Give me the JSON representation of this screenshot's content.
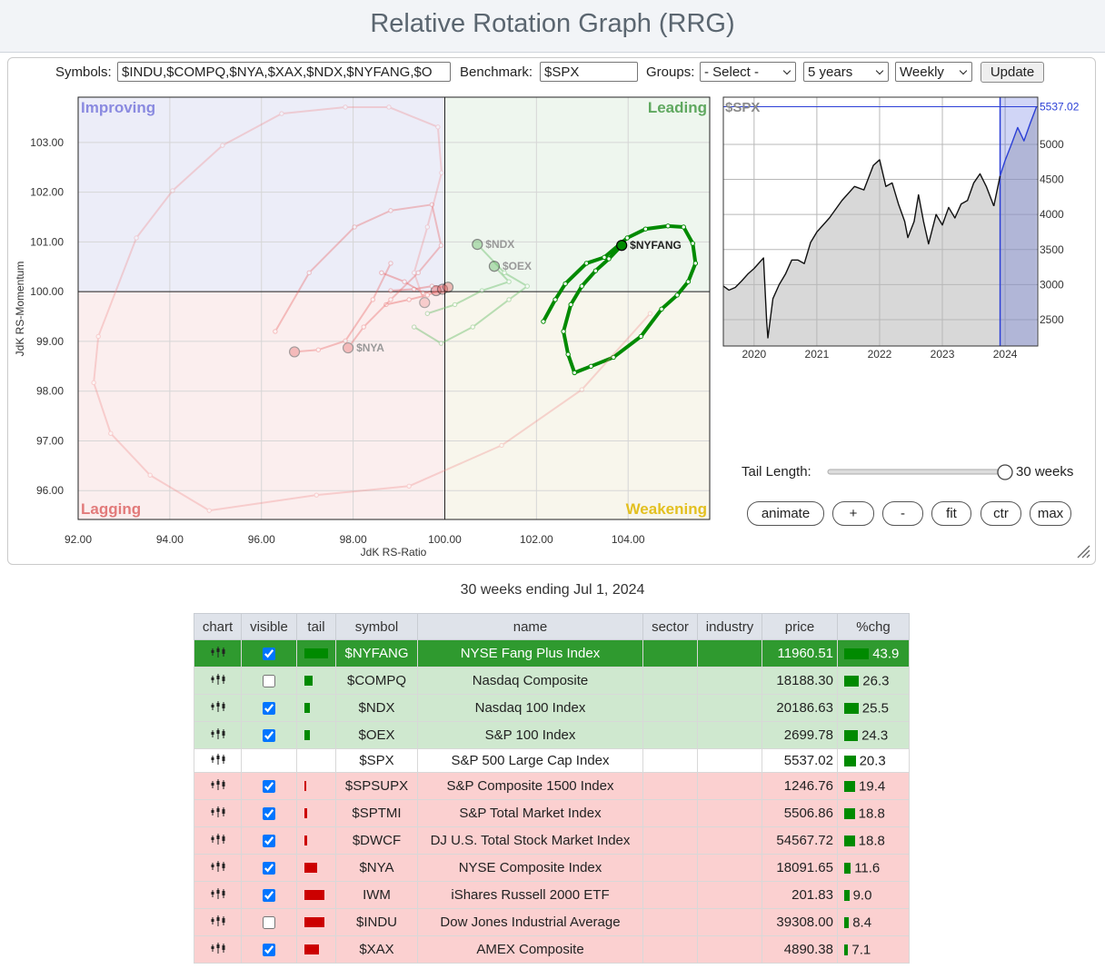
{
  "header": {
    "title": "Relative Rotation Graph (RRG)"
  },
  "controls": {
    "symbols": {
      "label": "Symbols:",
      "value": "$INDU,$COMPQ,$NYA,$XAX,$NDX,$NYFANG,$O"
    },
    "benchmark": {
      "label": "Benchmark:",
      "value": "$SPX"
    },
    "groups": {
      "label": "Groups:",
      "value": "- Select -"
    },
    "period": "5 years",
    "interval": "Weekly",
    "update": "Update"
  },
  "tail_length": {
    "label": "Tail Length:",
    "value_label": "30 weeks"
  },
  "buttons": [
    "animate",
    "+",
    "-",
    "fit",
    "ctr",
    "max"
  ],
  "chart_data": [
    {
      "type": "scatter",
      "x_label": "JdK RS-Ratio",
      "y_label": "JdK RS-Momentum",
      "xlim": [
        92,
        105.78
      ],
      "ylim": [
        95.42,
        103.91
      ],
      "xticks": [
        {
          "value": 92,
          "label": "92.00"
        },
        {
          "value": 94,
          "label": "94.00"
        },
        {
          "value": 96,
          "label": "96.00"
        },
        {
          "value": 98,
          "label": "98.00"
        },
        {
          "value": 100,
          "label": "100.00"
        },
        {
          "value": 102,
          "label": "102.00"
        },
        {
          "value": 104,
          "label": "104.00"
        }
      ],
      "yticks": [
        {
          "value": 96,
          "label": "96.00"
        },
        {
          "value": 97,
          "label": "97.00"
        },
        {
          "value": 98,
          "label": "98.00"
        },
        {
          "value": 99,
          "label": "99.00"
        },
        {
          "value": 100,
          "label": "100.00"
        },
        {
          "value": 101,
          "label": "101.00"
        },
        {
          "value": 102,
          "label": "102.00"
        },
        {
          "value": 103,
          "label": "103.00"
        }
      ],
      "grid": true,
      "center": {
        "x": 100,
        "y": 100
      },
      "quadrants": [
        {
          "name": "Improving",
          "color": "#8a8ae0",
          "fill": "#ecedf8"
        },
        {
          "name": "Leading",
          "color": "#5fa85f",
          "fill": "#eef6ee"
        },
        {
          "name": "Lagging",
          "color": "#e27a7a",
          "fill": "#fbeeee"
        },
        {
          "name": "Weakening",
          "color": "#e3c020",
          "fill": "#f8f6ec"
        }
      ],
      "series": [
        {
          "name": "$NYFANG",
          "color": "#008a00",
          "opacity": 1,
          "show_label": true,
          "x": [
            102.15,
            102.41,
            102.63,
            103.09,
            103.48,
            103.98,
            104.38,
            104.87,
            105.21,
            105.41,
            105.47,
            105.31,
            105.07,
            104.73,
            104.28,
            103.68,
            103.19,
            102.83,
            102.69,
            102.59,
            102.75,
            102.99,
            103.29,
            103.58,
            103.86
          ],
          "y": [
            99.4,
            99.84,
            100.16,
            100.57,
            100.69,
            101.08,
            101.26,
            101.32,
            101.3,
            100.97,
            100.57,
            100.2,
            99.93,
            99.65,
            99.1,
            98.68,
            98.5,
            98.37,
            98.74,
            99.2,
            99.74,
            100.11,
            100.42,
            100.66,
            100.93
          ]
        },
        {
          "name": "$NDX",
          "color": "#6cbf6c",
          "opacity": 0.45,
          "show_label": true,
          "x": [
            99.33,
            99.92,
            100.61,
            101.4,
            101.8,
            101.3,
            100.71
          ],
          "y": [
            99.29,
            98.96,
            99.29,
            99.84,
            100.11,
            100.38,
            100.95
          ]
        },
        {
          "name": "$OEX",
          "color": "#6cbf6c",
          "opacity": 0.45,
          "show_label": true,
          "x": [
            99.62,
            100.22,
            100.81,
            101.4,
            101.08
          ],
          "y": [
            99.56,
            99.74,
            100.02,
            100.2,
            100.51
          ]
        },
        {
          "name": "$SPSUPX",
          "color": "#e85c5c",
          "opacity": 0.4,
          "show_label": false,
          "x": [
            98.62,
            99.12,
            99.52,
            99.81
          ],
          "y": [
            100.38,
            100.2,
            99.98,
            100.02
          ]
        },
        {
          "name": "$SPTMI",
          "color": "#e85c5c",
          "opacity": 0.4,
          "show_label": false,
          "x": [
            98.72,
            99.22,
            99.62,
            99.95
          ],
          "y": [
            99.74,
            99.84,
            99.93,
            100.05
          ]
        },
        {
          "name": "$DWCF",
          "color": "#e85c5c",
          "opacity": 0.4,
          "show_label": false,
          "x": [
            98.82,
            99.33,
            99.72,
            100.07
          ],
          "y": [
            100.02,
            100.05,
            100.11,
            100.09
          ]
        },
        {
          "name": "$NYA",
          "color": "#e85c5c",
          "opacity": 0.35,
          "show_label": true,
          "x": [
            96.3,
            97.04,
            98.03,
            98.82,
            99.72,
            99.92,
            99.42,
            98.82,
            98.23,
            97.89
          ],
          "y": [
            99.2,
            100.38,
            101.3,
            101.63,
            101.75,
            100.93,
            100.38,
            99.84,
            99.29,
            98.87
          ]
        },
        {
          "name": "$XAX",
          "color": "#e85c5c",
          "opacity": 0.35,
          "show_label": false,
          "x": [
            98.82,
            98.43,
            97.83,
            97.24,
            96.72
          ],
          "y": [
            100.57,
            99.84,
            99.01,
            98.83,
            98.79
          ]
        },
        {
          "name": "IWM",
          "color": "#f08080",
          "opacity": 0.3,
          "show_label": false,
          "x": [
            104.48,
            102.99,
            101.24,
            99.22,
            97.2,
            94.86,
            93.57,
            92.71,
            92.34,
            92.44,
            93.27,
            94.06,
            95.15,
            96.44,
            97.83,
            98.78,
            99.85,
            99.93,
            99.62,
            99.33,
            99.56
          ],
          "y": [
            99.56,
            98.03,
            96.91,
            96.09,
            95.91,
            95.6,
            96.31,
            97.15,
            98.17,
            99.1,
            101.08,
            102.03,
            102.94,
            103.58,
            103.71,
            103.71,
            103.31,
            102.39,
            101.3,
            100.38,
            99.78
          ]
        }
      ]
    },
    {
      "type": "line",
      "color": "#111111",
      "fill": "#d8d8d8",
      "window_start": 2023.92,
      "window_color": "#2b3fd6",
      "xlim": [
        2019.51,
        2024.52
      ],
      "ylim": [
        2124,
        5673
      ],
      "xticks": [
        2020,
        2021,
        2022,
        2023,
        2024
      ],
      "yticks": [
        2500,
        3000,
        3500,
        4000,
        4500,
        5000
      ],
      "grid": true,
      "x": [
        2019.51,
        2019.6,
        2019.7,
        2019.8,
        2019.9,
        2020.0,
        2020.1,
        2020.15,
        2020.2,
        2020.22,
        2020.3,
        2020.4,
        2020.5,
        2020.6,
        2020.7,
        2020.8,
        2020.9,
        2021.0,
        2021.2,
        2021.4,
        2021.6,
        2021.75,
        2021.9,
        2022.0,
        2022.1,
        2022.2,
        2022.3,
        2022.4,
        2022.45,
        2022.55,
        2022.62,
        2022.7,
        2022.78,
        2022.9,
        2023.0,
        2023.1,
        2023.2,
        2023.3,
        2023.4,
        2023.5,
        2023.6,
        2023.7,
        2023.82,
        2023.92,
        2024.0,
        2024.1,
        2024.2,
        2024.3,
        2024.4,
        2024.5
      ],
      "values": [
        2980,
        2920,
        2960,
        3050,
        3150,
        3230,
        3330,
        3380,
        2480,
        2240,
        2800,
        3000,
        3150,
        3350,
        3350,
        3300,
        3600,
        3750,
        3950,
        4200,
        4400,
        4350,
        4700,
        4780,
        4400,
        4450,
        4150,
        3900,
        3670,
        3900,
        4280,
        3900,
        3580,
        4000,
        3850,
        4100,
        3950,
        4150,
        4200,
        4450,
        4580,
        4400,
        4120,
        4550,
        4770,
        5000,
        5240,
        5050,
        5300,
        5537.02
      ]
    }
  ],
  "caption": "30 weeks ending Jul 1, 2024",
  "table": {
    "columns": [
      "chart",
      "visible",
      "tail",
      "symbol",
      "name",
      "sector",
      "industry",
      "price",
      "%chg"
    ],
    "bar_color": "#008a00",
    "rows": [
      {
        "visible": true,
        "tail": 26,
        "tail_color": "#008a00",
        "symbol": "$NYFANG",
        "name": "NYSE Fang Plus Index",
        "price": "11960.51",
        "pct_chg": "43.9",
        "row_color": "#2f9a2f",
        "highlight": true
      },
      {
        "visible": false,
        "tail": 9,
        "tail_color": "#008a00",
        "symbol": "$COMPQ",
        "name": "Nasdaq Composite",
        "price": "18188.30",
        "pct_chg": "26.3",
        "row_color": "#cfe8cf"
      },
      {
        "visible": true,
        "tail": 6,
        "tail_color": "#008a00",
        "symbol": "$NDX",
        "name": "Nasdaq 100 Index",
        "price": "20186.63",
        "pct_chg": "25.5",
        "row_color": "#cfe8cf"
      },
      {
        "visible": true,
        "tail": 6,
        "tail_color": "#008a00",
        "symbol": "$OEX",
        "name": "S&P 100 Index",
        "price": "2699.78",
        "pct_chg": "24.3",
        "row_color": "#cfe8cf"
      },
      {
        "symbol": "$SPX",
        "name": "S&P 500 Large Cap Index",
        "price": "5537.02",
        "pct_chg": "20.3",
        "row_color": "#ffffff"
      },
      {
        "visible": true,
        "tail": 2,
        "tail_color": "#cc0000",
        "symbol": "$SPSUPX",
        "name": "S&P Composite 1500 Index",
        "price": "1246.76",
        "pct_chg": "19.4",
        "row_color": "#fbd0d0"
      },
      {
        "visible": true,
        "tail": 3,
        "tail_color": "#cc0000",
        "symbol": "$SPTMI",
        "name": "S&P Total Market Index",
        "price": "5506.86",
        "pct_chg": "18.8",
        "row_color": "#fbd0d0"
      },
      {
        "visible": true,
        "tail": 3,
        "tail_color": "#cc0000",
        "symbol": "$DWCF",
        "name": "DJ U.S. Total Stock Market Index",
        "price": "54567.72",
        "pct_chg": "18.8",
        "row_color": "#fbd0d0"
      },
      {
        "visible": true,
        "tail": 14,
        "tail_color": "#cc0000",
        "symbol": "$NYA",
        "name": "NYSE Composite Index",
        "price": "18091.65",
        "pct_chg": "11.6",
        "row_color": "#fbd0d0"
      },
      {
        "visible": true,
        "tail": 22,
        "tail_color": "#cc0000",
        "symbol": "IWM",
        "name": "iShares Russell 2000 ETF",
        "price": "201.83",
        "pct_chg": "9.0",
        "row_color": "#fbd0d0"
      },
      {
        "visible": false,
        "tail": 22,
        "tail_color": "#cc0000",
        "symbol": "$INDU",
        "name": "Dow Jones Industrial Average",
        "price": "39308.00",
        "pct_chg": "8.4",
        "row_color": "#fbd0d0"
      },
      {
        "visible": true,
        "tail": 16,
        "tail_color": "#cc0000",
        "symbol": "$XAX",
        "name": "AMEX Composite",
        "price": "4890.38",
        "pct_chg": "7.1",
        "row_color": "#fbd0d0"
      }
    ]
  }
}
